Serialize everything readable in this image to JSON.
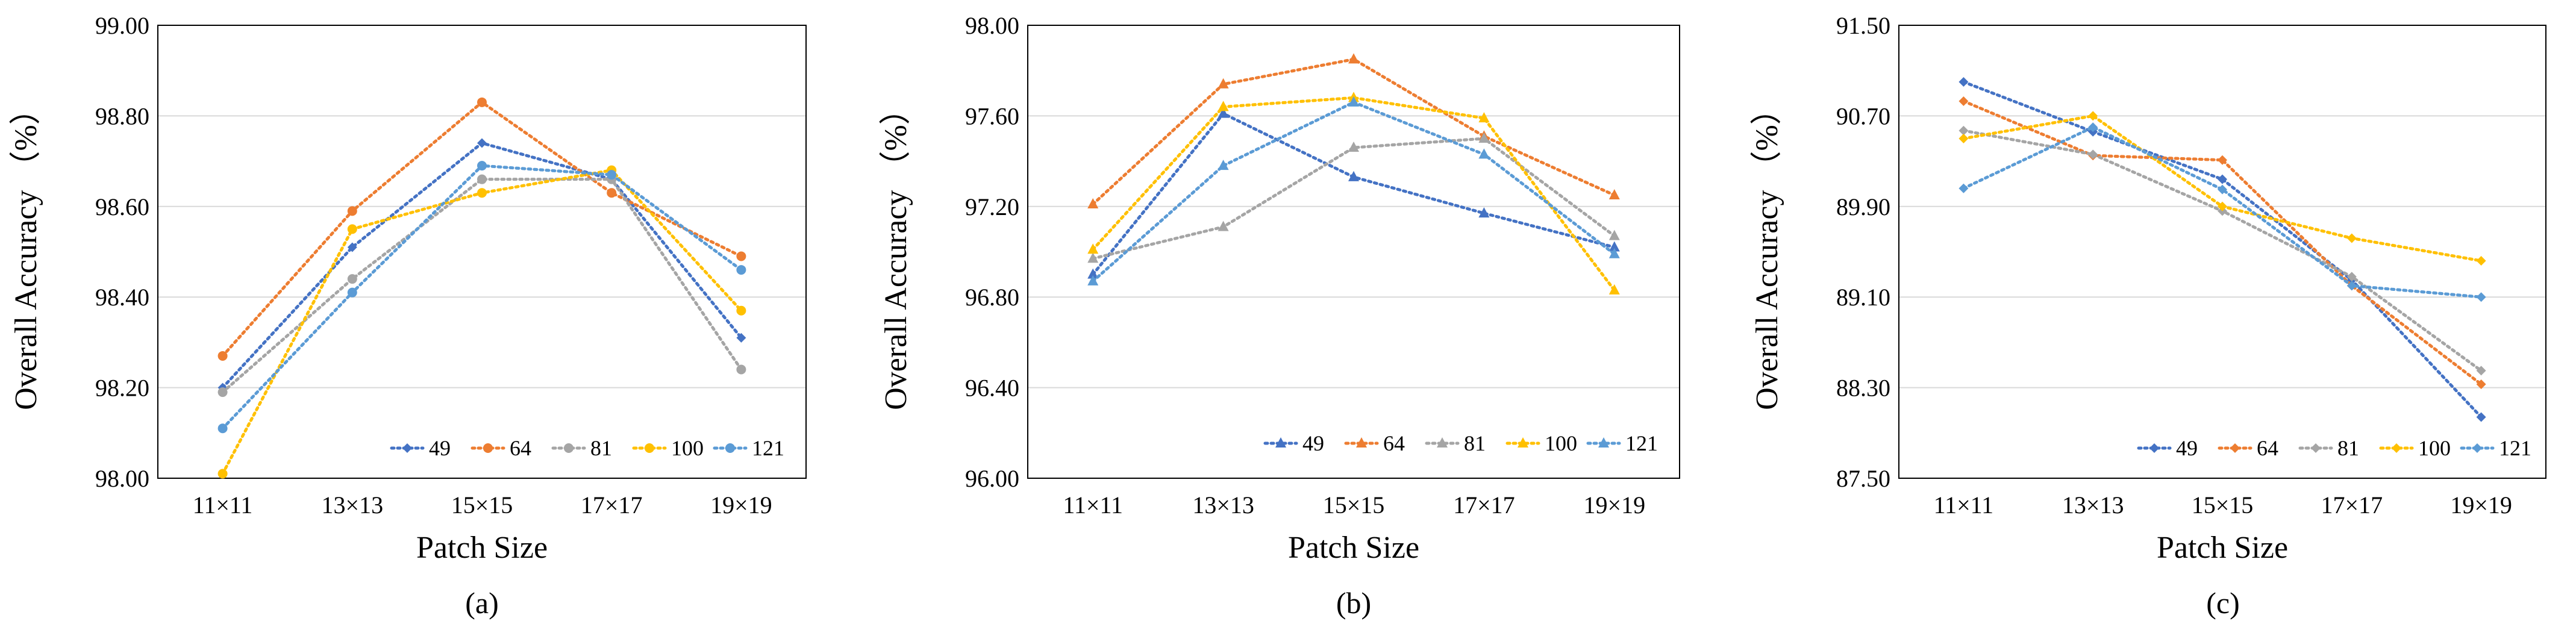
{
  "chart_data": [
    {
      "type": "line",
      "caption": "(a)",
      "xlabel": "Patch Size",
      "ylabel": "Overall Accuracy （%）",
      "categories": [
        "11×11",
        "13×13",
        "15×15",
        "17×17",
        "19×19"
      ],
      "ylim": [
        98.0,
        99.0
      ],
      "yticks": [
        "98.00",
        "98.20",
        "98.40",
        "98.60",
        "98.80",
        "99.00"
      ],
      "legend_position": "bottom-right",
      "series": [
        {
          "name": "49",
          "color": "#4472C4",
          "marker": "diamond",
          "values": [
            98.2,
            98.51,
            98.74,
            98.66,
            98.31
          ]
        },
        {
          "name": "64",
          "color": "#ED7D31",
          "marker": "circle",
          "values": [
            98.27,
            98.59,
            98.83,
            98.63,
            98.49
          ]
        },
        {
          "name": "81",
          "color": "#A5A5A5",
          "marker": "circle",
          "values": [
            98.19,
            98.44,
            98.66,
            98.66,
            98.24
          ]
        },
        {
          "name": "100",
          "color": "#FFC000",
          "marker": "circle",
          "values": [
            98.01,
            98.55,
            98.63,
            98.68,
            98.37
          ]
        },
        {
          "name": "121",
          "color": "#5B9BD5",
          "marker": "circle",
          "values": [
            98.11,
            98.41,
            98.69,
            98.67,
            98.46
          ]
        }
      ]
    },
    {
      "type": "line",
      "caption": "(b)",
      "xlabel": "Patch Size",
      "ylabel": "Overall Accuracy （%）",
      "categories": [
        "11×11",
        "13×13",
        "15×15",
        "17×17",
        "19×19"
      ],
      "ylim": [
        96.0,
        98.0
      ],
      "yticks": [
        "96.00",
        "96.40",
        "96.80",
        "97.20",
        "97.60",
        "98.00"
      ],
      "legend_position": "bottom-right",
      "series": [
        {
          "name": "49",
          "color": "#4472C4",
          "marker": "star",
          "values": [
            96.9,
            97.61,
            97.33,
            97.17,
            97.02
          ]
        },
        {
          "name": "64",
          "color": "#ED7D31",
          "marker": "star",
          "values": [
            97.21,
            97.74,
            97.85,
            97.51,
            97.25
          ]
        },
        {
          "name": "81",
          "color": "#A5A5A5",
          "marker": "star",
          "values": [
            96.97,
            97.11,
            97.46,
            97.5,
            97.07
          ]
        },
        {
          "name": "100",
          "color": "#FFC000",
          "marker": "star",
          "values": [
            97.01,
            97.64,
            97.68,
            97.59,
            96.83
          ]
        },
        {
          "name": "121",
          "color": "#5B9BD5",
          "marker": "star",
          "values": [
            96.87,
            97.38,
            97.66,
            97.43,
            96.99
          ]
        }
      ]
    },
    {
      "type": "line",
      "caption": "(c)",
      "xlabel": "Patch Size",
      "ylabel": "Overall Accuracy （%）",
      "categories": [
        "11×11",
        "13×13",
        "15×15",
        "17×17",
        "19×19"
      ],
      "ylim": [
        87.5,
        91.5
      ],
      "yticks": [
        "87.50",
        "88.30",
        "89.10",
        "89.90",
        "90.70",
        "91.50"
      ],
      "legend_position": "bottom-right",
      "series": [
        {
          "name": "49",
          "color": "#4472C4",
          "marker": "diamond",
          "values": [
            91.0,
            90.56,
            90.14,
            89.25,
            88.04
          ]
        },
        {
          "name": "64",
          "color": "#ED7D31",
          "marker": "diamond",
          "values": [
            90.83,
            90.35,
            90.31,
            89.2,
            88.33
          ]
        },
        {
          "name": "81",
          "color": "#A5A5A5",
          "marker": "diamond",
          "values": [
            90.57,
            90.36,
            89.86,
            89.28,
            88.45
          ]
        },
        {
          "name": "100",
          "color": "#FFC000",
          "marker": "diamond",
          "values": [
            90.5,
            90.7,
            89.9,
            89.62,
            89.42
          ]
        },
        {
          "name": "121",
          "color": "#5B9BD5",
          "marker": "diamond",
          "values": [
            90.06,
            90.6,
            90.05,
            89.2,
            89.1
          ]
        }
      ]
    }
  ]
}
